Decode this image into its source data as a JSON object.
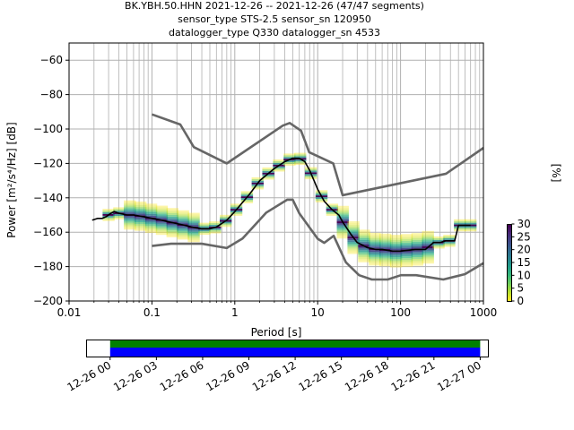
{
  "header": {
    "title_line1": "BK.YBH.50.HHN   2021-12-26 -- 2021-12-26  (47/47 segments)",
    "title_line2": "sensor_type STS-2.5 sensor_sn 120950",
    "title_line3": "datalogger_type Q330 datalogger_sn 4533"
  },
  "chart_data": [
    {
      "type": "heatmap",
      "xlabel": "Period [s]",
      "ylabel": "Power [m²/s⁴/Hz] [dB]",
      "xscale": "log",
      "xlim": [
        0.01,
        1000
      ],
      "ylim": [
        -200,
        -50
      ],
      "x_ticks": [
        0.01,
        0.1,
        1,
        10,
        100,
        1000
      ],
      "x_tick_labels": [
        "0.01",
        "0.1",
        "1",
        "10",
        "100",
        "1000"
      ],
      "y_ticks": [
        -200,
        -180,
        -160,
        -140,
        -120,
        -100,
        -80,
        -60
      ],
      "y_tick_labels": [
        "−200",
        "−180",
        "−160",
        "−140",
        "−120",
        "−100",
        "−80",
        "−60"
      ],
      "grid": true,
      "colorbar": {
        "label": "[%]",
        "range": [
          0,
          30
        ],
        "ticks": [
          0,
          5,
          10,
          15,
          20,
          25,
          30
        ]
      },
      "series": [
        {
          "role": "mode",
          "x": [
            0.019,
            0.022,
            0.025,
            0.028,
            0.032,
            0.035,
            0.04,
            0.05,
            0.06,
            0.08,
            0.1,
            0.13,
            0.16,
            0.2,
            0.25,
            0.3,
            0.4,
            0.5,
            0.6,
            0.8,
            1,
            1.5,
            2,
            3,
            4,
            5,
            6,
            7,
            8,
            10,
            12,
            15,
            18,
            20,
            25,
            30,
            40,
            50,
            60,
            80,
            100,
            150,
            200,
            250,
            300,
            350,
            400,
            450,
            500,
            550,
            600,
            650,
            700
          ],
          "y": [
            -153,
            -152,
            -152,
            -151,
            -149,
            -148,
            -149,
            -150,
            -150,
            -151,
            -152,
            -153,
            -154,
            -155,
            -156,
            -157,
            -158,
            -158,
            -157,
            -153,
            -148,
            -138,
            -130,
            -123,
            -119,
            -117,
            -117,
            -119,
            -124,
            -135,
            -142,
            -147,
            -150,
            -154,
            -161,
            -166,
            -169,
            -170,
            -170,
            -171,
            -171,
            -170,
            -170,
            -166,
            -166,
            -165,
            -165,
            -165,
            -156,
            -156,
            -156,
            -156,
            -156
          ]
        },
        {
          "role": "noise-model-high",
          "x": [
            0.1,
            0.22,
            0.32,
            0.8,
            3.8,
            4.6,
            6.3,
            7.9,
            15.4,
            20,
            354,
            1000
          ],
          "y": [
            -91.5,
            -97.4,
            -110.5,
            -120,
            -98,
            -96.5,
            -101,
            -113.5,
            -120,
            -138.5,
            -126,
            -111
          ]
        },
        {
          "role": "noise-model-low",
          "x": [
            0.1,
            0.17,
            0.4,
            0.8,
            1.24,
            2.4,
            4.3,
            5,
            6,
            10,
            12,
            15.6,
            21.9,
            31.6,
            45,
            70,
            101,
            154,
            328,
            600,
            1000
          ],
          "y": [
            -168,
            -166.7,
            -166.7,
            -169.2,
            -163.7,
            -148.6,
            -141.1,
            -141.1,
            -149,
            -163.8,
            -166.2,
            -162.1,
            -177.5,
            -185,
            -187.5,
            -187.5,
            -185,
            -185,
            -187.5,
            -184.4,
            -178
          ]
        }
      ]
    },
    {
      "type": "timeline",
      "x_tick_labels": [
        "12-26 00",
        "12-26 03",
        "12-26 06",
        "12-26 09",
        "12-26 12",
        "12-26 15",
        "12-26 18",
        "12-26 21",
        "12-27 00"
      ],
      "xlim_hours": [
        -1.5,
        24.5
      ],
      "coverage": [
        {
          "name": "data",
          "color": "#0000ff",
          "start_hour": 0,
          "end_hour": 24
        },
        {
          "name": "psd",
          "color": "#008000",
          "start_hour": 0,
          "end_hour": 24
        }
      ]
    }
  ],
  "colors": {
    "mode": "#000000",
    "noise_model": "#666666",
    "grid": "#b0b0b0"
  }
}
